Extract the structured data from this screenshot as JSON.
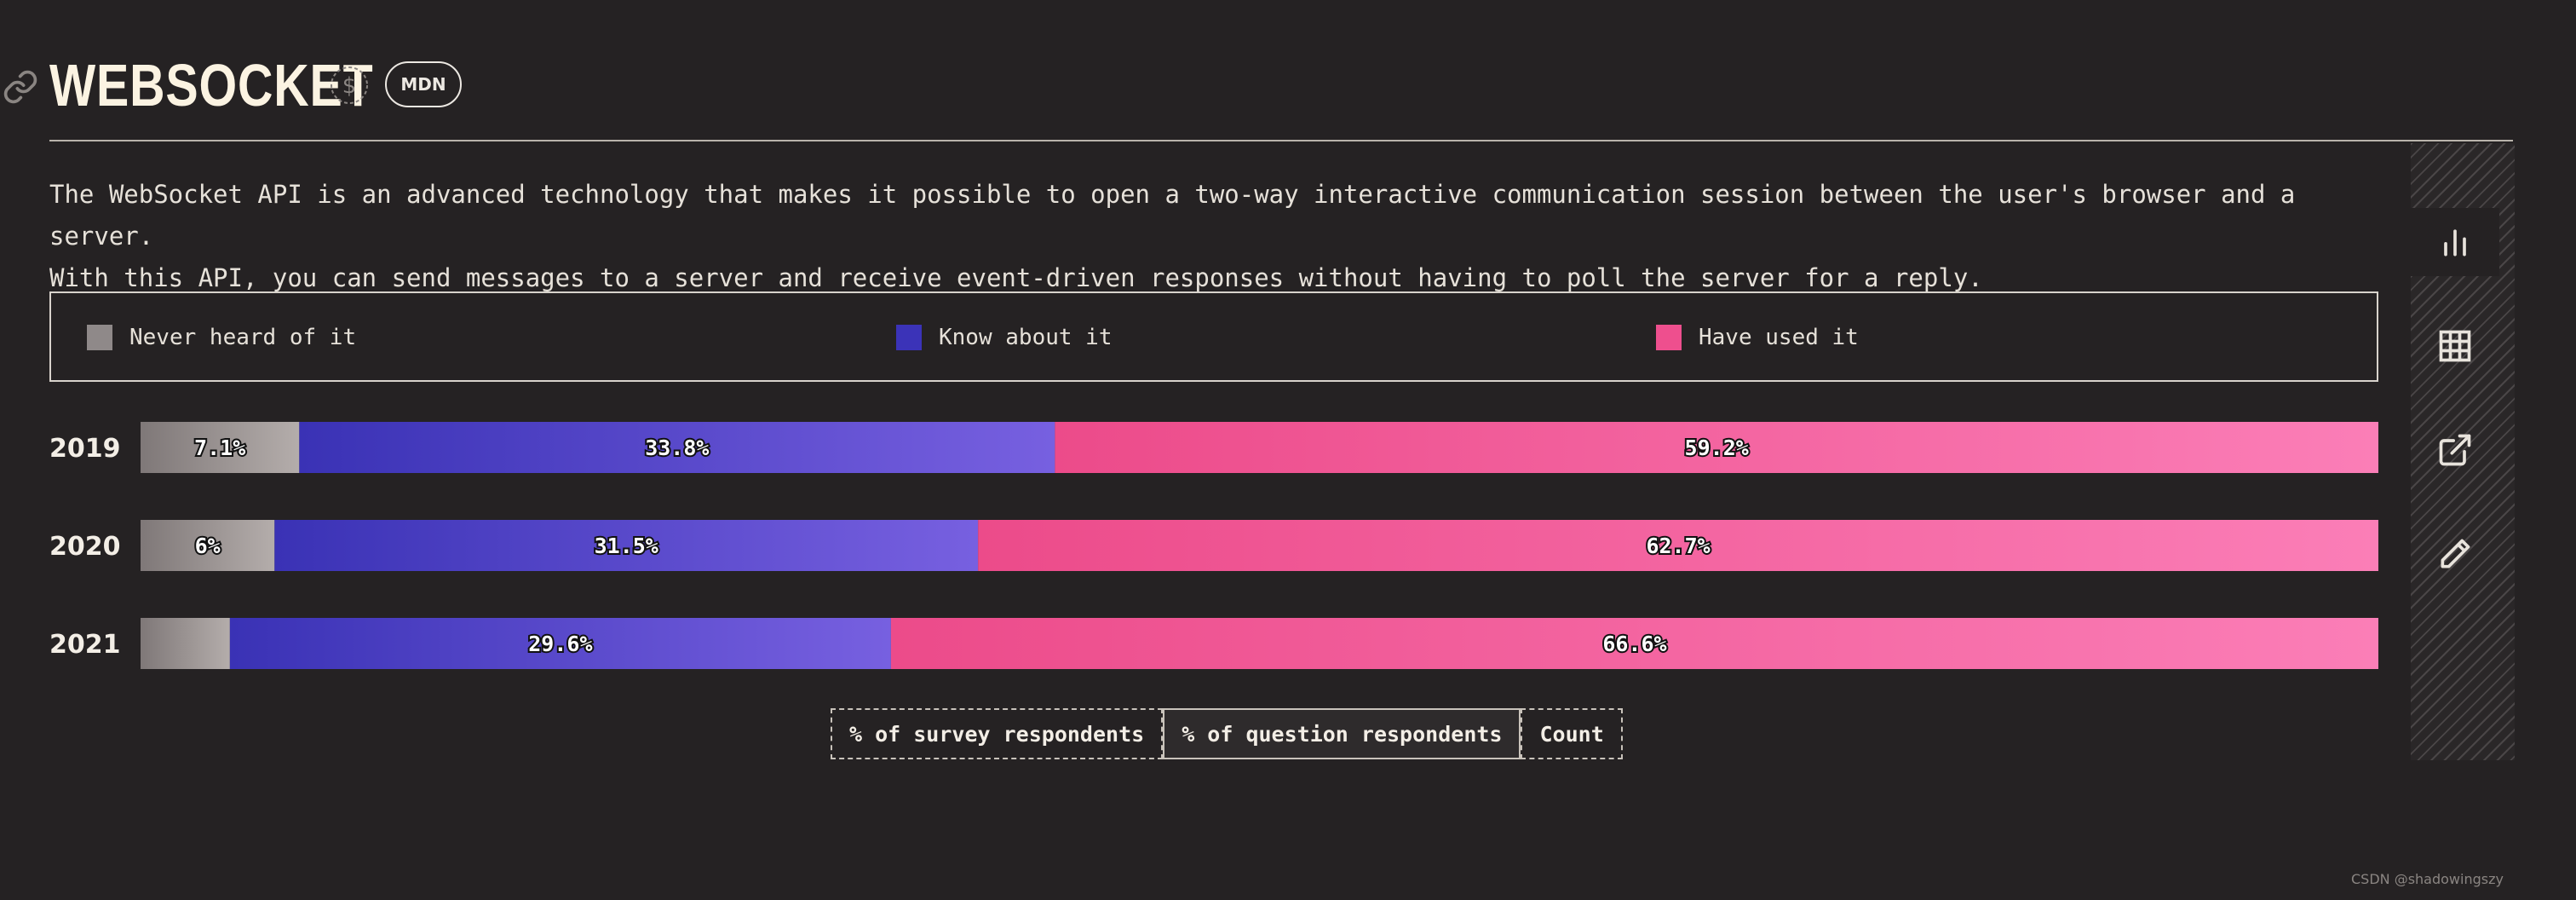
{
  "header": {
    "title": "WEBSOCKET",
    "badge": "MDN",
    "icons": [
      "link-icon",
      "dollar-icon"
    ]
  },
  "description": "The WebSocket API is an advanced technology that makes it possible to open a two-way interactive communication session between the user's browser and a server.\nWith this API, you can send messages to a server and receive event-driven responses without having to poll the server for a reply.",
  "legend": [
    {
      "label": "Never heard of it",
      "color": "#8f8989"
    },
    {
      "label": "Know about it",
      "color": "#3b33b8"
    },
    {
      "label": "Have used it",
      "color": "#ee4f8e"
    }
  ],
  "colors": {
    "never": [
      "#7f7878",
      "#b4adab"
    ],
    "know": [
      "#3a32b5",
      "#7760e0"
    ],
    "used": [
      "#ec4b8a",
      "#fb7eb7"
    ],
    "background": "#252223"
  },
  "chart_data": {
    "type": "bar",
    "orientation": "horizontal",
    "stacked": true,
    "categories": [
      "2019",
      "2020",
      "2021"
    ],
    "series": [
      {
        "name": "Never heard of it",
        "values": [
          7.1,
          6,
          4
        ],
        "labels": [
          "7.1%",
          "6%",
          ""
        ]
      },
      {
        "name": "Know about it",
        "values": [
          33.8,
          31.5,
          29.6
        ],
        "labels": [
          "33.8%",
          "31.5%",
          "29.6%"
        ]
      },
      {
        "name": "Have used it",
        "values": [
          59.2,
          62.7,
          66.6
        ],
        "labels": [
          "59.2%",
          "62.7%",
          "66.6%"
        ]
      }
    ],
    "xlim": [
      0,
      100
    ],
    "unit": "%",
    "legend_position": "top",
    "grid": false
  },
  "unit_toggle": {
    "options": [
      "% of survey respondents",
      "% of question respondents",
      "Count"
    ],
    "selected": "% of question respondents"
  },
  "side_tabs": [
    {
      "name": "chart-icon",
      "active": true
    },
    {
      "name": "table-icon",
      "active": false
    },
    {
      "name": "share-icon",
      "active": false
    },
    {
      "name": "edit-icon",
      "active": false
    }
  ],
  "watermark": "CSDN @shadowingszy"
}
